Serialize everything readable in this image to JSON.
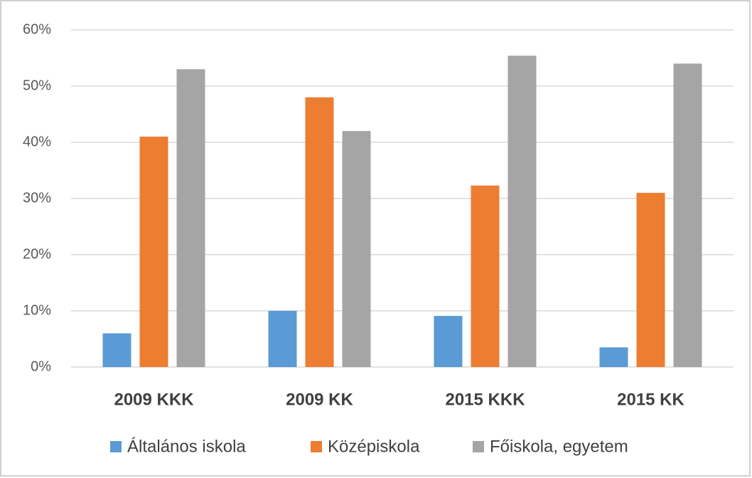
{
  "chart_data": {
    "type": "bar",
    "categories": [
      "2009 KKK",
      "2009 KK",
      "2015 KKK",
      "2015 KK"
    ],
    "series": [
      {
        "name": "Általános iskola",
        "color": "#5b9bd5",
        "values": [
          6,
          10,
          9.1,
          3.5
        ]
      },
      {
        "name": "Középiskola",
        "color": "#ed7d31",
        "values": [
          41,
          48,
          32.3,
          31
        ]
      },
      {
        "name": "Főiskola, egyetem",
        "color": "#a5a5a5",
        "values": [
          53,
          42,
          55.4,
          54
        ]
      }
    ],
    "ylim": [
      0,
      60
    ],
    "yticks": [
      {
        "value": 0,
        "label": "0%"
      },
      {
        "value": 10,
        "label": "10%"
      },
      {
        "value": 20,
        "label": "20%"
      },
      {
        "value": 30,
        "label": "30%"
      },
      {
        "value": 40,
        "label": "40%"
      },
      {
        "value": 50,
        "label": "50%"
      },
      {
        "value": 60,
        "label": "60%"
      }
    ],
    "grid": true,
    "legend": "bottom"
  }
}
